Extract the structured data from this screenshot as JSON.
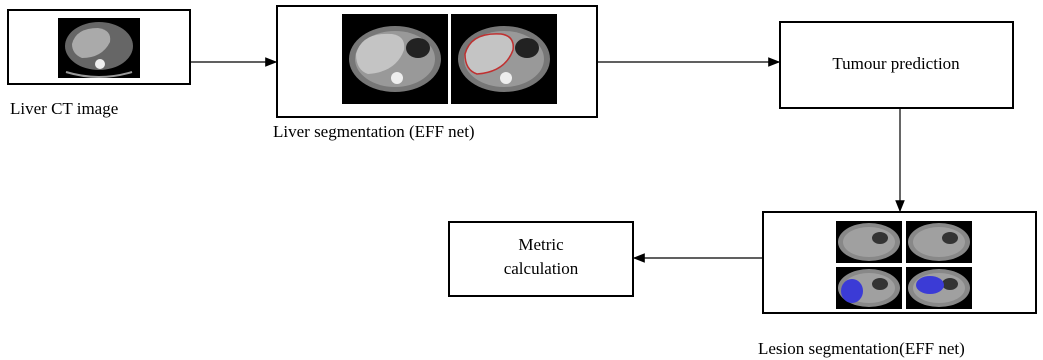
{
  "nodes": [
    {
      "label": "Liver CT image"
    },
    {
      "label": "Liver segmentation (EFF net)"
    },
    {
      "label": "Tumour prediction"
    },
    {
      "label": "Lesion segmentation(EFF net)"
    },
    {
      "label_lines": [
        "Metric",
        "calculation"
      ]
    }
  ]
}
